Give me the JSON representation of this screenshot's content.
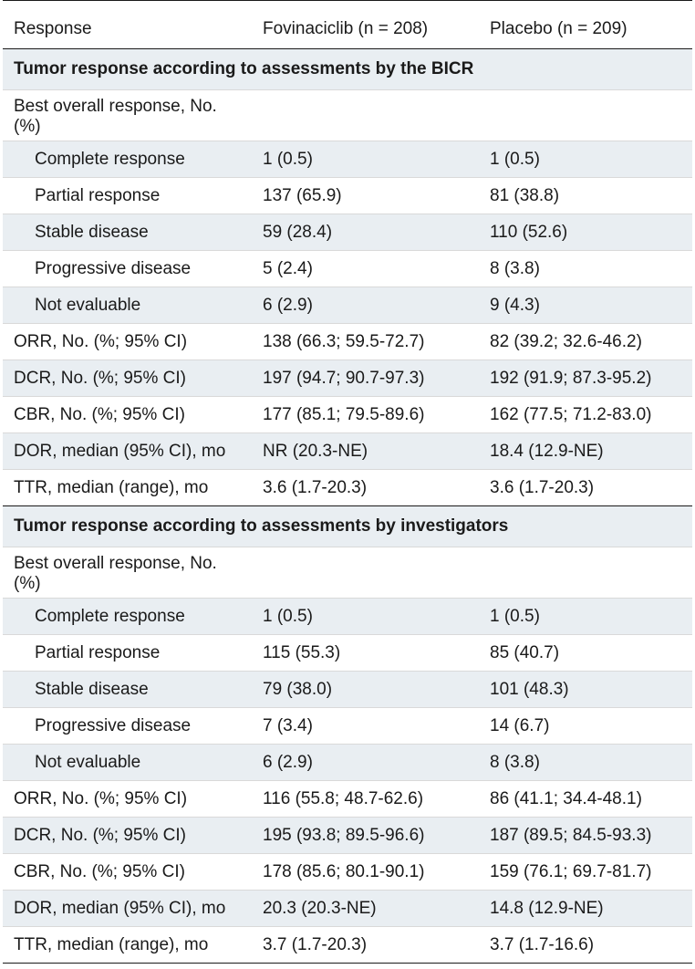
{
  "header": {
    "col1": "Response",
    "col2": "Fovinaciclib (n = 208)",
    "col3": "Placebo (n = 209)"
  },
  "sections": [
    {
      "title": "Tumor response according to assessments by the BICR",
      "group_label": "Best overall response, No. (%)",
      "group_rows": [
        {
          "label": "Complete response",
          "fovinaciclib": "1 (0.5)",
          "placebo": "1 (0.5)"
        },
        {
          "label": "Partial response",
          "fovinaciclib": "137 (65.9)",
          "placebo": "81 (38.8)"
        },
        {
          "label": "Stable disease",
          "fovinaciclib": "59 (28.4)",
          "placebo": "110 (52.6)"
        },
        {
          "label": "Progressive disease",
          "fovinaciclib": "5 (2.4)",
          "placebo": "8 (3.8)"
        },
        {
          "label": "Not evaluable",
          "fovinaciclib": "6 (2.9)",
          "placebo": "9 (4.3)"
        }
      ],
      "rows": [
        {
          "label": "ORR, No. (%; 95% CI)",
          "fovinaciclib": "138 (66.3; 59.5-72.7)",
          "placebo": "82 (39.2; 32.6-46.2)"
        },
        {
          "label": "DCR, No. (%; 95% CI)",
          "fovinaciclib": "197 (94.7; 90.7-97.3)",
          "placebo": "192 (91.9; 87.3-95.2)"
        },
        {
          "label": "CBR, No. (%; 95% CI)",
          "fovinaciclib": "177 (85.1; 79.5-89.6)",
          "placebo": "162 (77.5; 71.2-83.0)"
        },
        {
          "label": "DOR, median (95% CI), mo",
          "fovinaciclib": "NR (20.3-NE)",
          "placebo": "18.4 (12.9-NE)"
        },
        {
          "label": "TTR, median (range), mo",
          "fovinaciclib": "3.6 (1.7-20.3)",
          "placebo": "3.6 (1.7-20.3)"
        }
      ]
    },
    {
      "title": "Tumor response according to assessments by investigators",
      "group_label": "Best overall response, No. (%)",
      "group_rows": [
        {
          "label": "Complete response",
          "fovinaciclib": "1 (0.5)",
          "placebo": "1 (0.5)"
        },
        {
          "label": "Partial response",
          "fovinaciclib": "115 (55.3)",
          "placebo": "85 (40.7)"
        },
        {
          "label": "Stable disease",
          "fovinaciclib": "79 (38.0)",
          "placebo": "101 (48.3)"
        },
        {
          "label": "Progressive disease",
          "fovinaciclib": "7 (3.4)",
          "placebo": "14 (6.7)"
        },
        {
          "label": "Not evaluable",
          "fovinaciclib": "6 (2.9)",
          "placebo": "8 (3.8)"
        }
      ],
      "rows": [
        {
          "label": "ORR, No. (%; 95% CI)",
          "fovinaciclib": "116 (55.8; 48.7-62.6)",
          "placebo": "86 (41.1; 34.4-48.1)"
        },
        {
          "label": "DCR, No. (%; 95% CI)",
          "fovinaciclib": "195 (93.8; 89.5-96.6)",
          "placebo": "187 (89.5; 84.5-93.3)"
        },
        {
          "label": "CBR, No. (%; 95% CI)",
          "fovinaciclib": "178 (85.6; 80.1-90.1)",
          "placebo": "159 (76.1; 69.7-81.7)"
        },
        {
          "label": "DOR, median (95% CI), mo",
          "fovinaciclib": "20.3 (20.3-NE)",
          "placebo": "14.8 (12.9-NE)"
        },
        {
          "label": "TTR, median (range), mo",
          "fovinaciclib": "3.7 (1.7-20.3)",
          "placebo": "3.7 (1.7-16.6)"
        }
      ]
    }
  ]
}
